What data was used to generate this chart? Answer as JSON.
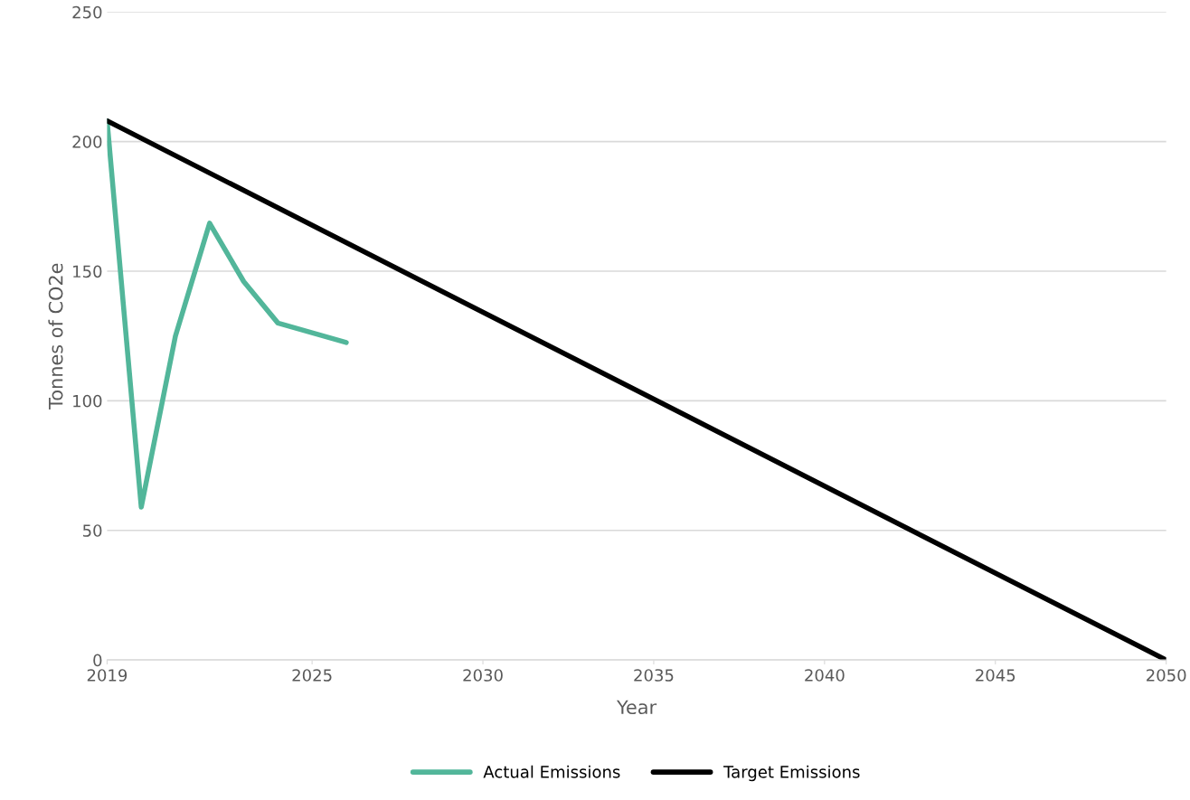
{
  "chart_data": {
    "type": "line",
    "xlabel": "Year",
    "ylabel": "Tonnes of CO2e",
    "xlim": [
      2019,
      2050
    ],
    "xticks": [
      2019,
      2025,
      2030,
      2035,
      2040,
      2045,
      2050
    ],
    "ylim": [
      0,
      250
    ],
    "yticks": [
      0,
      50,
      100,
      150,
      200,
      250
    ],
    "grid": "y",
    "legend": "bottom",
    "marker": "none",
    "line_style": "solid",
    "series": [
      {
        "name": "Actual Emissions",
        "color": "#52b69a",
        "x": [
          2019,
          2020,
          2021,
          2022,
          2023,
          2024,
          2026
        ],
        "values": [
          208,
          59,
          125,
          168.5,
          146,
          130,
          122.5
        ]
      },
      {
        "name": "Target Emissions",
        "color": "#000000",
        "x": [
          2019,
          2050
        ],
        "values": [
          208,
          0
        ]
      }
    ]
  }
}
